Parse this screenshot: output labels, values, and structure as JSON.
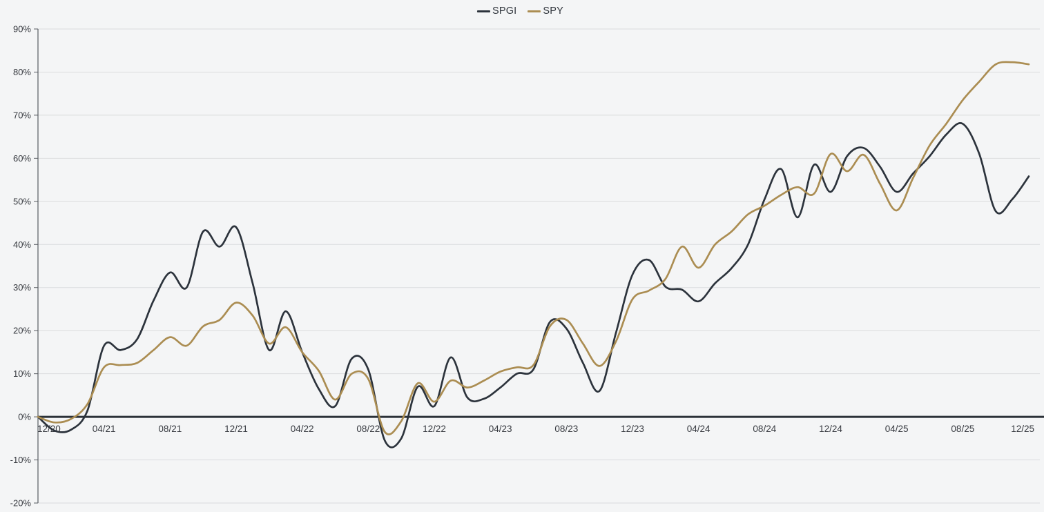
{
  "legend": {
    "position": "top-center",
    "items": [
      {
        "label": "SPGI",
        "color": "#2c333c"
      },
      {
        "label": "SPY",
        "color": "#ab8d52"
      }
    ]
  },
  "colors": {
    "background": "#f4f5f6",
    "gridline": "#dadbdd",
    "zero_line": "#2b3138",
    "axis_spine": "#565a60",
    "tick_text": "#36393f",
    "spgi_line": "#2c333c",
    "spy_line": "#ab8d52"
  },
  "chart_data": {
    "type": "line",
    "title": "",
    "xlabel": "",
    "ylabel": "",
    "grid": true,
    "legend_position": "top-center",
    "zero_baseline_emphasized": true,
    "y_axis": {
      "min": -20,
      "max": 90,
      "step": 10,
      "unit": "%",
      "tick_labels": [
        "90%",
        "80%",
        "70%",
        "60%",
        "50%",
        "40%",
        "30%",
        "20%",
        "10%",
        "0%",
        "-10%",
        "-20%"
      ]
    },
    "x_axis": {
      "unit": "month",
      "start": "12/20",
      "end": "12/25",
      "months_total": 60,
      "ticks_every_months": 4,
      "tick_labels": [
        "12/20",
        "04/21",
        "08/21",
        "12/21",
        "04/22",
        "08/22",
        "12/22",
        "04/23",
        "08/23",
        "12/23",
        "04/24",
        "08/24",
        "12/24",
        "04/25",
        "08/25",
        "12/25"
      ]
    },
    "series": [
      {
        "name": "SPGI",
        "color": "#2c333c",
        "points_are": "monthly cumulative % return from 12/20 to 12/25",
        "values": [
          0,
          -3.2,
          -3.0,
          1.5,
          16.5,
          15.5,
          18,
          27,
          33.5,
          30,
          43,
          39.5,
          44,
          31,
          15.5,
          24.5,
          15,
          6.5,
          2.5,
          13.5,
          11,
          -5.5,
          -5,
          7,
          2.5,
          13.8,
          4.5,
          4.2,
          6.8,
          10,
          11,
          22,
          20.5,
          12.5,
          6,
          19.5,
          33,
          36.4,
          30.2,
          29.5,
          26.8,
          31,
          34.5,
          40,
          50.5,
          57.5,
          46.3,
          58.5,
          52.2,
          60.5,
          62.4,
          58,
          52.2,
          56.5,
          60.5,
          65.5,
          68,
          61,
          47.7,
          50.5,
          55.8
        ]
      },
      {
        "name": "SPY",
        "color": "#ab8d52",
        "points_are": "monthly cumulative % return from 12/20 to 12/25",
        "values": [
          0,
          -1.3,
          -0.5,
          3,
          11.5,
          12,
          12.5,
          15.5,
          18.5,
          16.5,
          21,
          22.5,
          26.5,
          23.5,
          17,
          20.8,
          15,
          10.7,
          4,
          10,
          8.8,
          -3.5,
          -1,
          7.8,
          3.5,
          8.4,
          6.8,
          8.4,
          10.5,
          11.5,
          12,
          21,
          22.5,
          17,
          11.8,
          17.5,
          27.3,
          29.3,
          32,
          39.5,
          34.6,
          40,
          43,
          47,
          49,
          51.5,
          53.3,
          51.8,
          61,
          57,
          60.8,
          54,
          47.9,
          55.5,
          63,
          68,
          73.5,
          77.8,
          81.8,
          82.3,
          81.8
        ]
      }
    ]
  }
}
